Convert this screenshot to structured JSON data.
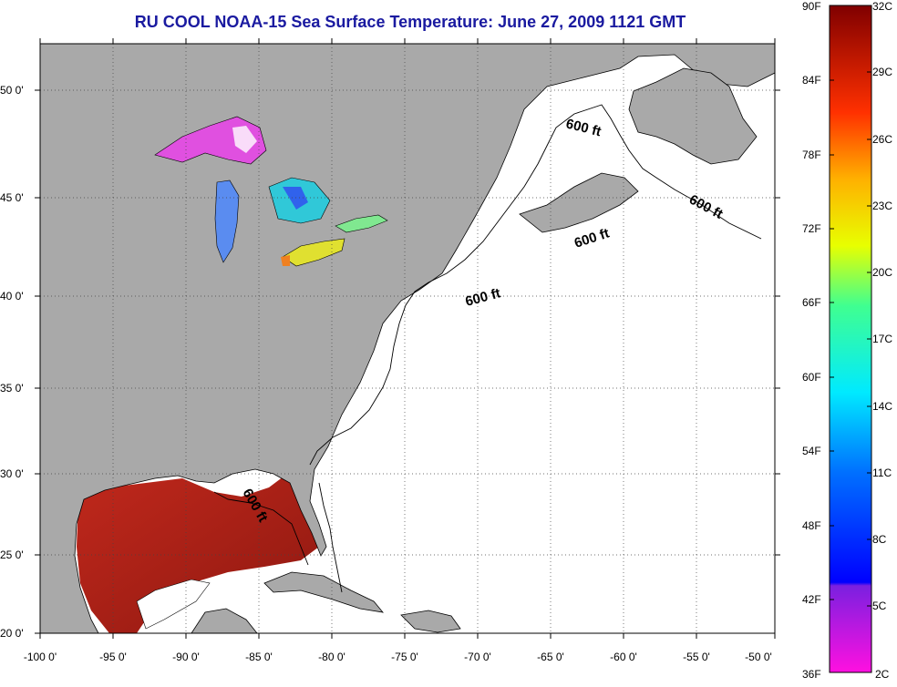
{
  "title": "RU COOL  NOAA-15  Sea Surface Temperature:  June 27, 2009 1121 GMT",
  "latitude_labels": [
    "50 0'",
    "45 0'",
    "40 0'",
    "35 0'",
    "30 0'",
    "25 0'",
    "20 0'"
  ],
  "longitude_labels": [
    "-100 0'",
    "-95 0'",
    "-90 0'",
    "-85 0'",
    "-80 0'",
    "-75 0'",
    "-70 0'",
    "-65 0'",
    "-60 0'",
    "-55 0'",
    "-50 0'"
  ],
  "isobath_label": "600 ft",
  "colorbar": {
    "fahrenheit_labels": [
      "90F",
      "84F",
      "78F",
      "72F",
      "66F",
      "60F",
      "54F",
      "48F",
      "42F",
      "36F"
    ],
    "celsius_labels": [
      "32C",
      "29C",
      "26C",
      "23C",
      "20C",
      "17C",
      "14C",
      "11C",
      "8C",
      "5C",
      "2C"
    ]
  },
  "colors": {
    "land": "#a9a9a9",
    "ocean_no_data": "#ffffff",
    "title": "#1a1aa0",
    "warm_sst": "#b22222"
  }
}
